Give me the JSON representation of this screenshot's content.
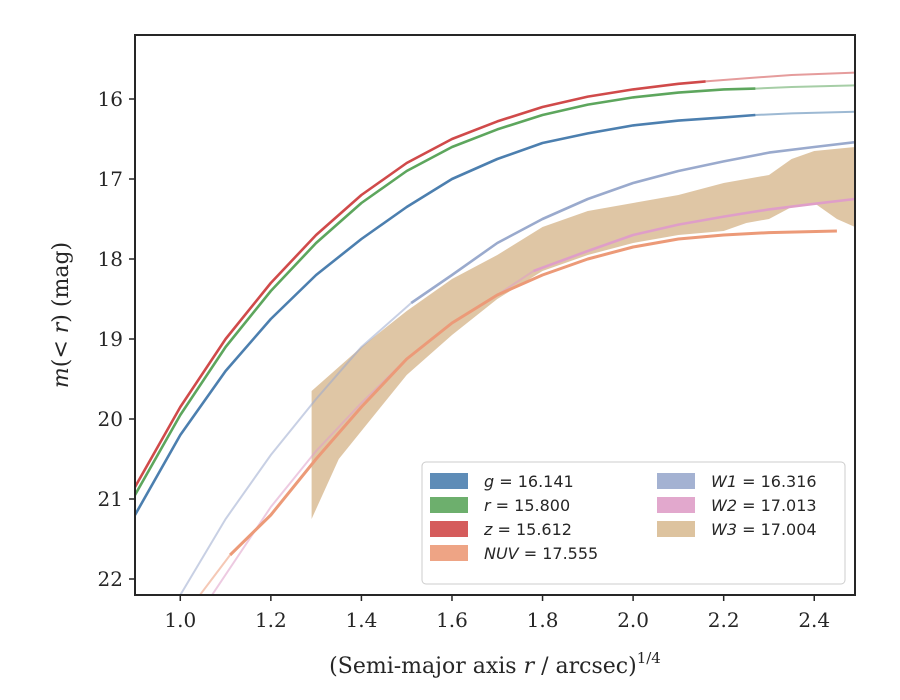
{
  "chart_data": {
    "type": "line",
    "xlabel": "(Semi-major axis r / arcsec)^{1/4}",
    "ylabel": "m(< r) (mag)",
    "xlim": [
      0.9,
      2.49
    ],
    "ylim": [
      22.2,
      15.2
    ],
    "y_inverted": true,
    "xticks": [
      "1.0",
      "1.2",
      "1.4",
      "1.6",
      "1.8",
      "2.0",
      "2.2",
      "2.4"
    ],
    "xtick_values": [
      1.0,
      1.2,
      1.4,
      1.6,
      1.8,
      2.0,
      2.2,
      2.4
    ],
    "yticks": [
      "16",
      "17",
      "18",
      "19",
      "20",
      "21",
      "22"
    ],
    "ytick_values": [
      16,
      17,
      18,
      19,
      20,
      21,
      22
    ],
    "grid": false,
    "legend_placement": "lower-right",
    "series": [
      {
        "name": "g",
        "legend": "g = 16.141",
        "color": "#4c7faf",
        "style": "solid",
        "x": [
          0.9,
          1.0,
          1.1,
          1.2,
          1.3,
          1.4,
          1.5,
          1.6,
          1.7,
          1.8,
          1.9,
          2.0,
          2.1,
          2.2,
          2.27
        ],
        "y": [
          21.2,
          20.2,
          19.4,
          18.75,
          18.2,
          17.75,
          17.35,
          17.0,
          16.75,
          16.55,
          16.43,
          16.33,
          16.27,
          16.23,
          16.2
        ],
        "faint_x": [
          2.27,
          2.35,
          2.49
        ],
        "faint_y": [
          16.2,
          16.18,
          16.16
        ]
      },
      {
        "name": "r",
        "legend": "r = 15.800",
        "color": "#5da65d",
        "style": "solid",
        "x": [
          0.9,
          1.0,
          1.1,
          1.2,
          1.3,
          1.4,
          1.5,
          1.6,
          1.7,
          1.8,
          1.9,
          2.0,
          2.1,
          2.2,
          2.27
        ],
        "y": [
          20.95,
          19.95,
          19.1,
          18.4,
          17.8,
          17.3,
          16.9,
          16.6,
          16.38,
          16.2,
          16.07,
          15.98,
          15.92,
          15.88,
          15.87
        ],
        "faint_x": [
          2.27,
          2.35,
          2.49
        ],
        "faint_y": [
          15.87,
          15.85,
          15.83
        ]
      },
      {
        "name": "z",
        "legend": "z = 15.612",
        "color": "#d04a4a",
        "style": "solid",
        "x": [
          0.9,
          1.0,
          1.1,
          1.2,
          1.3,
          1.4,
          1.5,
          1.6,
          1.7,
          1.8,
          1.9,
          2.0,
          2.1,
          2.16
        ],
        "y": [
          20.85,
          19.85,
          19.0,
          18.3,
          17.7,
          17.2,
          16.8,
          16.5,
          16.28,
          16.1,
          15.97,
          15.88,
          15.81,
          15.78
        ],
        "faint_x": [
          2.16,
          2.25,
          2.35,
          2.49
        ],
        "faint_y": [
          15.78,
          15.74,
          15.7,
          15.67
        ]
      },
      {
        "name": "NUV",
        "legend": "NUV = 17.555",
        "color": "#ec9a78",
        "style": "solid",
        "x": [
          1.11,
          1.2,
          1.3,
          1.4,
          1.5,
          1.6,
          1.7,
          1.8,
          1.9,
          2.0,
          2.1,
          2.2,
          2.3,
          2.45
        ],
        "y": [
          21.7,
          21.2,
          20.5,
          19.85,
          19.25,
          18.8,
          18.45,
          18.2,
          18.0,
          17.85,
          17.75,
          17.7,
          17.67,
          17.65
        ],
        "faint_x": [
          1.03,
          1.07,
          1.11
        ],
        "faint_y": [
          22.3,
          22.0,
          21.7
        ]
      },
      {
        "name": "W1",
        "legend": "W1 = 16.316",
        "color": "#9aaacd",
        "style": "solid",
        "x": [
          1.51,
          1.6,
          1.7,
          1.8,
          1.9,
          2.0,
          2.1,
          2.2,
          2.3,
          2.4,
          2.49
        ],
        "y": [
          18.55,
          18.2,
          17.8,
          17.5,
          17.25,
          17.05,
          16.9,
          16.78,
          16.67,
          16.6,
          16.54
        ],
        "faint_x": [
          1.0,
          1.1,
          1.2,
          1.3,
          1.4,
          1.51
        ],
        "faint_y": [
          22.2,
          21.25,
          20.45,
          19.75,
          19.1,
          18.55
        ]
      },
      {
        "name": "W2",
        "legend": "W2 = 17.013",
        "color": "#df9ec8",
        "style": "solid",
        "x": [
          1.78,
          1.9,
          2.0,
          2.1,
          2.2,
          2.3,
          2.4,
          2.49
        ],
        "y": [
          18.15,
          17.9,
          17.7,
          17.57,
          17.47,
          17.38,
          17.31,
          17.25
        ],
        "faint_x": [
          1.07,
          1.2,
          1.3,
          1.4,
          1.5,
          1.6,
          1.7,
          1.78
        ],
        "faint_y": [
          22.2,
          21.1,
          20.4,
          19.8,
          19.25,
          18.8,
          18.45,
          18.15
        ]
      },
      {
        "name": "W3",
        "legend": "W3 = 17.004",
        "color": "#d9bc95",
        "style": "band",
        "upper_x": [
          1.29,
          1.4,
          1.5,
          1.6,
          1.7,
          1.8,
          1.9,
          2.0,
          2.1,
          2.2,
          2.3,
          2.35,
          2.4,
          2.49
        ],
        "upper_y": [
          19.65,
          19.1,
          18.65,
          18.25,
          17.95,
          17.6,
          17.4,
          17.3,
          17.2,
          17.05,
          16.95,
          16.75,
          16.65,
          16.6
        ],
        "lower_x": [
          1.29,
          1.35,
          1.4,
          1.5,
          1.6,
          1.7,
          1.8,
          1.9,
          2.0,
          2.1,
          2.2,
          2.25,
          2.3,
          2.35,
          2.4,
          2.45,
          2.49
        ],
        "lower_y": [
          21.25,
          20.5,
          20.15,
          19.45,
          18.95,
          18.5,
          18.15,
          17.95,
          17.8,
          17.7,
          17.65,
          17.55,
          17.5,
          17.35,
          17.3,
          17.5,
          17.6
        ]
      }
    ]
  },
  "legend": {
    "entries": [
      {
        "var": "g",
        "value": "16.141",
        "series": 0
      },
      {
        "var": "r",
        "value": "15.800",
        "series": 1
      },
      {
        "var": "z",
        "value": "15.612",
        "series": 2
      },
      {
        "var": "NUV",
        "value": "17.555",
        "series": 3
      },
      {
        "var": "W1",
        "value": "16.316",
        "series": 4
      },
      {
        "var": "W2",
        "value": "17.013",
        "series": 5
      },
      {
        "var": "W3",
        "value": "17.004",
        "series": 6
      }
    ]
  }
}
